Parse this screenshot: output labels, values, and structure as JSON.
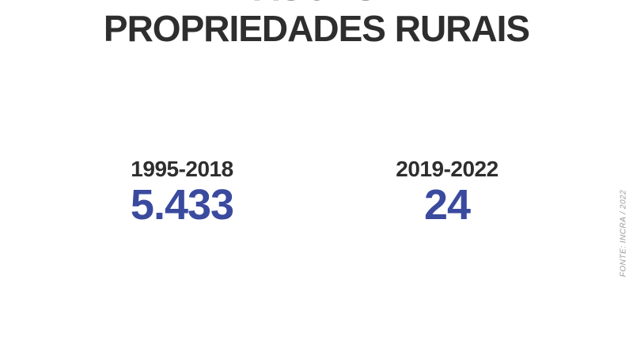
{
  "chart_data": {
    "type": "table",
    "title": "INVASÕES DE PROPRIEDADES RURAIS",
    "categories": [
      "1995-2018",
      "2019-2022"
    ],
    "values": [
      5433,
      24
    ],
    "value_labels": [
      "5.433",
      "24"
    ],
    "source": "FONTE: INCRA / 2022",
    "accent_color": "#3a4a9e",
    "text_color": "#2e2e2e",
    "background_color": "#ffffff",
    "layout": "two-column stat comparison, no axes, no gridlines, title centered at top (first line cropped by viewport), source credit rotated vertically at right edge"
  },
  "title": {
    "line1": "INVASÕES DE",
    "line2": "PROPRIEDADES RURAIS"
  },
  "stats": [
    {
      "period": "1995-2018",
      "value": "5.433"
    },
    {
      "period": "2019-2022",
      "value": "24"
    }
  ],
  "source_label": "FONTE: INCRA / 2022"
}
